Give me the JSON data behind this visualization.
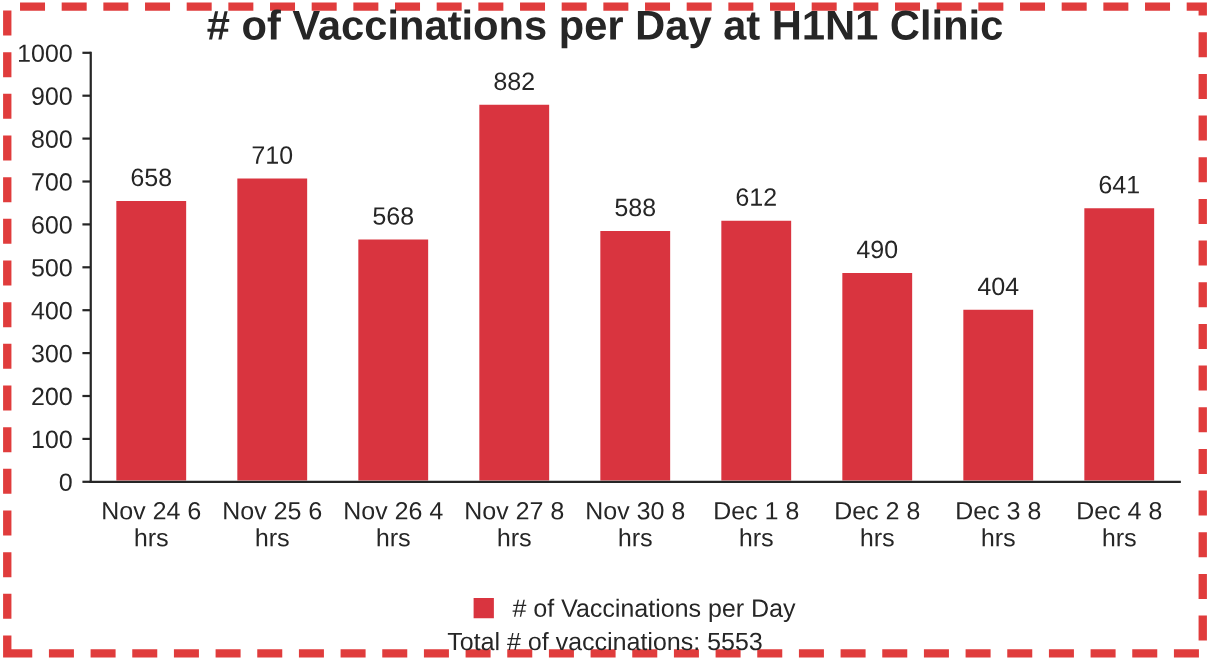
{
  "chart_data": {
    "type": "bar",
    "title": "# of Vaccinations per Day at H1N1 Clinic",
    "categories": [
      "Nov 24 6 hrs",
      "Nov 25 6 hrs",
      "Nov 26 4 hrs",
      "Nov 27 8 hrs",
      "Nov 30 8 hrs",
      "Dec 1 8 hrs",
      "Dec 2 8 hrs",
      "Dec 3 8 hrs",
      "Dec 4 8 hrs"
    ],
    "series": [
      {
        "name": "# of Vaccinations per Day",
        "color": "#d9343f",
        "values": [
          658,
          710,
          568,
          882,
          588,
          612,
          490,
          404,
          641
        ]
      }
    ],
    "ylim": [
      0,
      1000
    ],
    "yticks": [
      0,
      100,
      200,
      300,
      400,
      500,
      600,
      700,
      800,
      900,
      1000
    ],
    "data_labels": true,
    "grid": false,
    "legend": "bottom",
    "annotations": [
      "Total # of vaccinations: 5553"
    ]
  }
}
